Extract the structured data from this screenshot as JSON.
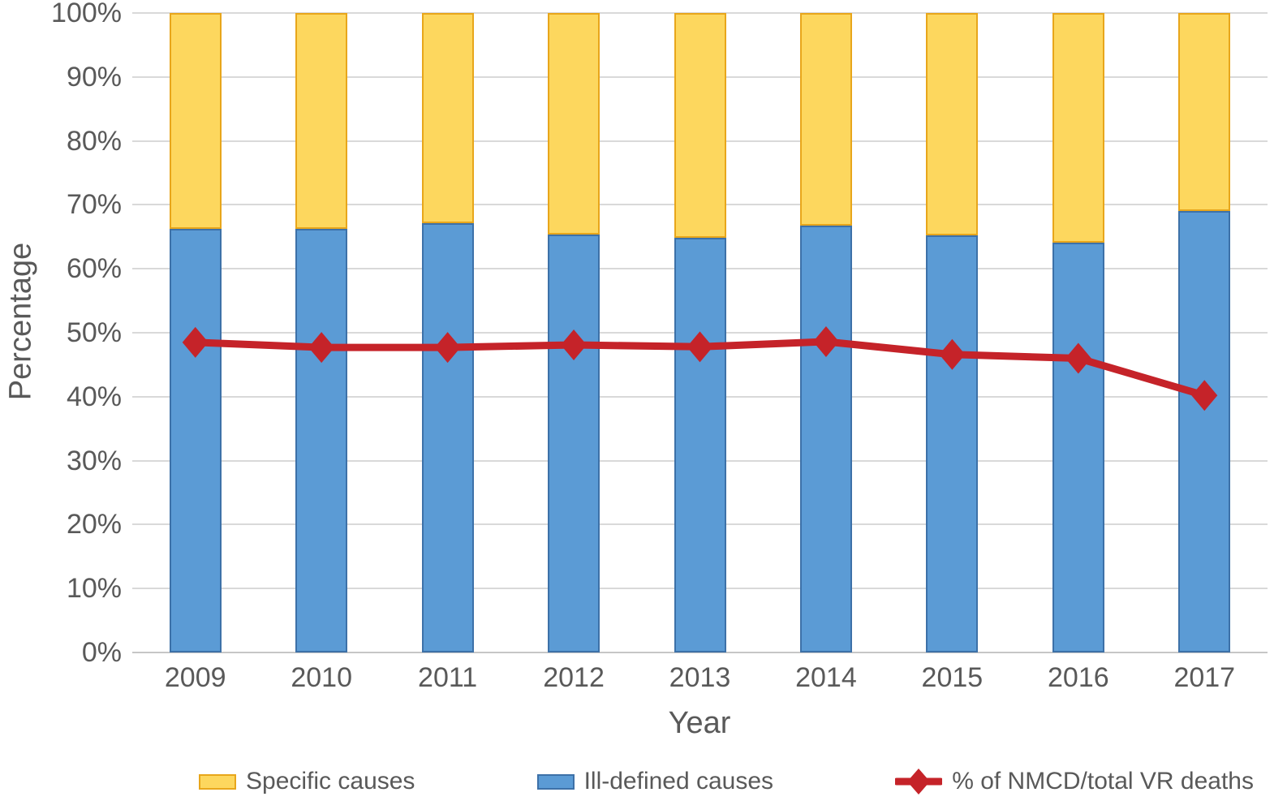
{
  "chart_data": {
    "type": "bar",
    "subtype": "stacked-bars-with-line-overlay",
    "title": "",
    "xlabel": "Year",
    "ylabel": "Percentage",
    "categories": [
      "2009",
      "2010",
      "2011",
      "2012",
      "2013",
      "2014",
      "2015",
      "2016",
      "2017"
    ],
    "series": [
      {
        "name": "Ill-defined causes",
        "render": "bar",
        "stack_order": "bottom",
        "color": "#5b9bd5",
        "border_color": "#3d71a8",
        "values": [
          66.3,
          66.2,
          67.1,
          65.3,
          64.8,
          66.7,
          65.2,
          64.1,
          69.0
        ]
      },
      {
        "name": "Specific causes",
        "render": "bar",
        "stack_order": "top",
        "color": "#fdd75e",
        "border_color": "#e8a61b",
        "values": [
          33.7,
          33.8,
          32.9,
          34.7,
          35.2,
          33.3,
          34.8,
          35.9,
          31.0
        ]
      },
      {
        "name": "% of NMCD/total VR deaths",
        "render": "line",
        "color": "#c52329",
        "marker": "diamond",
        "values": [
          48.5,
          47.7,
          47.7,
          48.1,
          47.8,
          48.6,
          46.6,
          46.0,
          40.2
        ]
      }
    ],
    "ylim": [
      0,
      100
    ],
    "ytick_step": 10,
    "ytick_labels": [
      "0%",
      "10%",
      "20%",
      "30%",
      "40%",
      "50%",
      "60%",
      "70%",
      "80%",
      "90%",
      "100%"
    ],
    "grid": true,
    "legend_position": "bottom",
    "legend": [
      {
        "label": "Specific causes",
        "swatch": "yellow-rect"
      },
      {
        "label": "Ill-defined causes",
        "swatch": "blue-rect"
      },
      {
        "label": "% of NMCD/total VR deaths",
        "swatch": "red-line-diamond"
      }
    ]
  },
  "colors": {
    "text": "#595959",
    "gridline": "#d9d9d9",
    "axis_line": "#c6c6c6",
    "background": "#ffffff"
  }
}
